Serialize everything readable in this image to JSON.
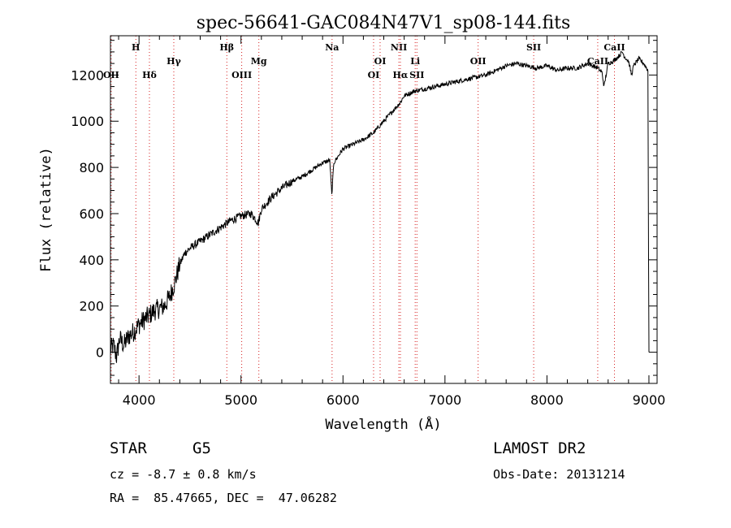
{
  "chart_data": {
    "type": "line",
    "title": "spec-56641-GAC084N47V1_sp08-144.fits",
    "xlabel": "Wavelength (Å)",
    "ylabel": "Flux (relative)",
    "xlim": [
      3720,
      9080
    ],
    "ylim": [
      -135,
      1370
    ],
    "xticks": [
      4000,
      5000,
      6000,
      7000,
      8000,
      9000
    ],
    "yticks": [
      0,
      200,
      400,
      600,
      800,
      1000,
      1200
    ],
    "tick_labels_x": [
      "4000",
      "5000",
      "6000",
      "7000",
      "8000",
      "9000"
    ],
    "tick_labels_y": [
      "0",
      "200",
      "400",
      "600",
      "800",
      "1000",
      "1200"
    ],
    "series": [
      {
        "name": "spectrum",
        "x": [
          3720,
          3750,
          3780,
          3810,
          3850,
          3900,
          3950,
          4000,
          4050,
          4100,
          4150,
          4200,
          4250,
          4300,
          4350,
          4400,
          4450,
          4500,
          4600,
          4700,
          4800,
          4900,
          5000,
          5100,
          5170,
          5200,
          5300,
          5400,
          5500,
          5600,
          5700,
          5800,
          5870,
          5890,
          5910,
          6000,
          6100,
          6200,
          6300,
          6400,
          6500,
          6560,
          6600,
          6700,
          6800,
          6900,
          7000,
          7100,
          7200,
          7300,
          7400,
          7500,
          7600,
          7700,
          7800,
          7900,
          8000,
          8100,
          8200,
          8300,
          8400,
          8500,
          8540,
          8560,
          8600,
          8650,
          8700,
          8740,
          8760,
          8800,
          8830,
          8850,
          8900,
          8950,
          8990,
          9000
        ],
        "y": [
          10,
          30,
          -20,
          60,
          30,
          70,
          90,
          120,
          140,
          160,
          180,
          190,
          200,
          240,
          300,
          380,
          430,
          450,
          480,
          510,
          540,
          570,
          590,
          600,
          560,
          620,
          670,
          710,
          740,
          760,
          790,
          820,
          830,
          680,
          820,
          880,
          900,
          920,
          950,
          1000,
          1050,
          1080,
          1110,
          1130,
          1140,
          1150,
          1160,
          1170,
          1180,
          1190,
          1200,
          1220,
          1240,
          1250,
          1240,
          1230,
          1240,
          1220,
          1230,
          1230,
          1250,
          1230,
          1210,
          1150,
          1250,
          1260,
          1280,
          1300,
          1280,
          1260,
          1200,
          1240,
          1270,
          1250,
          1220,
          0
        ]
      }
    ],
    "line_markers": [
      {
        "label": "OII",
        "wl": 3727,
        "row": 3
      },
      {
        "label": "H",
        "wl": 3969,
        "row": 1
      },
      {
        "label": "Hδ",
        "wl": 4102,
        "row": 3
      },
      {
        "label": "Hγ",
        "wl": 4341,
        "row": 2
      },
      {
        "label": "Hβ",
        "wl": 4861,
        "row": 1
      },
      {
        "label": "OIII",
        "wl": 5007,
        "row": 3
      },
      {
        "label": "Mg",
        "wl": 5175,
        "row": 2
      },
      {
        "label": "Na",
        "wl": 5893,
        "row": 1
      },
      {
        "label": "OI",
        "wl": 6300,
        "row": 3
      },
      {
        "label": "OI",
        "wl": 6364,
        "row": 2
      },
      {
        "label": "NII",
        "wl": 6548,
        "row": 1
      },
      {
        "label": "Hα",
        "wl": 6563,
        "row": 3
      },
      {
        "label": "Li",
        "wl": 6708,
        "row": 2
      },
      {
        "label": "SII",
        "wl": 6725,
        "row": 3
      },
      {
        "label": "OII",
        "wl": 7325,
        "row": 2
      },
      {
        "label": "SII",
        "wl": 7870,
        "row": 1
      },
      {
        "label": "CaII",
        "wl": 8498,
        "row": 2
      },
      {
        "label": "CaII",
        "wl": 8662,
        "row": 1
      }
    ]
  },
  "info": {
    "class_label": "STAR",
    "subclass": "G5",
    "cz": "cz = -8.7 ± 0.8 km/s",
    "coords": "RA =  85.47665, DEC =  47.06282",
    "survey": "LAMOST DR2",
    "obs_date": "Obs-Date: 20131214"
  }
}
